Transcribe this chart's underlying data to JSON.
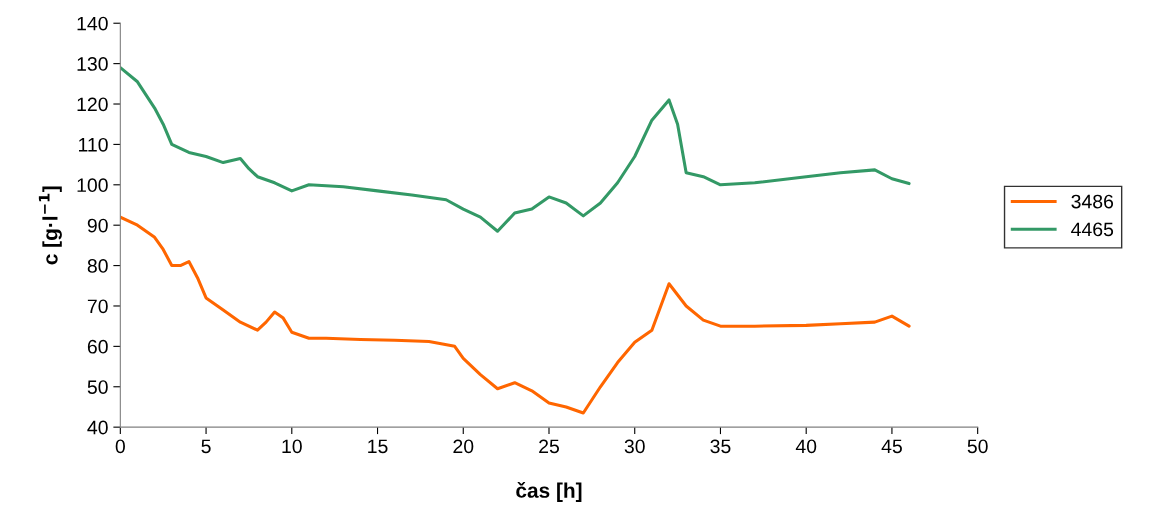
{
  "chart_data": {
    "type": "line",
    "xlabel": "čas [h]",
    "ylabel": "c [g·l$^{−1}$]",
    "xlim": [
      0,
      50
    ],
    "xticks": [
      0,
      5,
      10,
      15,
      20,
      25,
      30,
      35,
      40,
      45,
      50
    ],
    "ylim": [
      40,
      140
    ],
    "yticks": [
      40,
      50,
      60,
      70,
      80,
      90,
      100,
      110,
      120,
      130,
      140
    ],
    "grid": false,
    "legend": "right",
    "marker": "none",
    "line_style": "solid",
    "series": [
      {
        "name": "3486",
        "color": "#ff6600",
        "x": [
          0,
          1,
          2,
          2.5,
          3,
          3.5,
          4,
          4.5,
          5,
          6,
          7,
          8,
          8.5,
          9,
          9.5,
          10,
          11,
          12,
          14,
          16,
          18,
          19.5,
          20,
          21,
          22,
          23,
          24,
          25,
          26,
          27,
          28,
          29,
          30,
          31,
          32,
          33,
          34,
          35,
          37,
          40,
          42,
          44,
          45,
          46
        ],
        "values": [
          92,
          90,
          87,
          84,
          80,
          80,
          81,
          77,
          72,
          69,
          66,
          64,
          66,
          68.5,
          67,
          63.5,
          62,
          62,
          61.7,
          61.5,
          61.2,
          60,
          57,
          53,
          49.5,
          51,
          49,
          46,
          45,
          43.5,
          50,
          56,
          61,
          64,
          75.5,
          70,
          66.5,
          65,
          65,
          65.2,
          65.6,
          66,
          67.5,
          65
        ]
      },
      {
        "name": "4465",
        "color": "#339966",
        "x": [
          0,
          1,
          2,
          2.5,
          3,
          4,
          5,
          6,
          7,
          7.5,
          8,
          9,
          10,
          11,
          13,
          15,
          17,
          19,
          20,
          21,
          22,
          23,
          24,
          25,
          26,
          27,
          28,
          29,
          30,
          31,
          32,
          32.5,
          33,
          34,
          35,
          37,
          40,
          42,
          44,
          45,
          46
        ],
        "values": [
          129,
          125.5,
          119,
          115,
          110,
          108,
          107,
          105.5,
          106.5,
          104,
          102,
          100.5,
          98.5,
          100,
          99.5,
          98.5,
          97.5,
          96.3,
          94,
          92,
          88.5,
          93,
          94,
          97,
          95.5,
          92.3,
          95.5,
          100.5,
          107,
          116,
          121,
          115,
          103,
          102,
          100,
          100.5,
          102,
          103,
          103.7,
          101.5,
          100.3
        ]
      }
    ]
  }
}
